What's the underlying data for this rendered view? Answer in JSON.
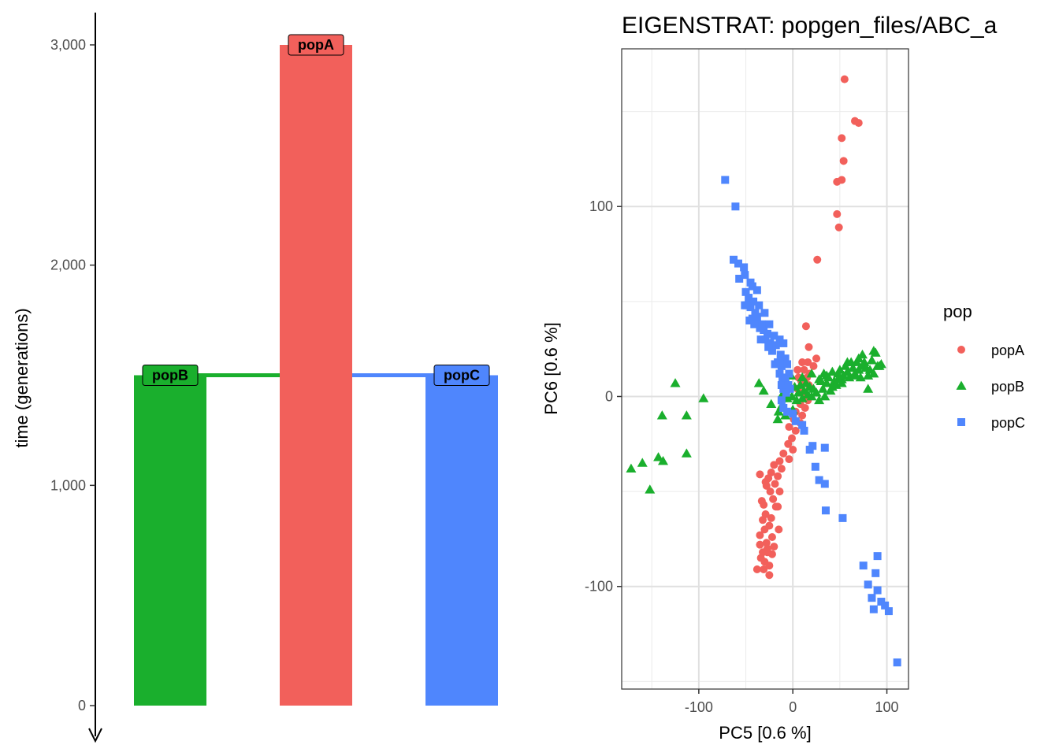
{
  "chart_data": [
    {
      "type": "bar",
      "ylabel": "time (generations)",
      "y_ticks": [
        0,
        1000,
        2000,
        3000
      ],
      "y_tick_labels": [
        "0",
        "1,000",
        "2,000",
        "3,000"
      ],
      "ylim": [
        0,
        3000
      ],
      "y_axis_reversed_arrow": true,
      "categories": [
        "popB",
        "popA",
        "popC"
      ],
      "bars": [
        {
          "label": "popB",
          "start": 0,
          "end": 1500,
          "color": "#1aaf2d"
        },
        {
          "label": "popA",
          "start": 0,
          "end": 3000,
          "color": "#f2605b"
        },
        {
          "label": "popC",
          "start": 0,
          "end": 1500,
          "color": "#4f86fd"
        }
      ],
      "splits": [
        {
          "time": 1500,
          "from": "popA",
          "to": "popB",
          "color": "#1aaf2d"
        },
        {
          "time": 1500,
          "from": "popA",
          "to": "popC",
          "color": "#4f86fd"
        }
      ]
    },
    {
      "type": "scatter",
      "title": "EIGENSTRAT: popgen_files/ABC_a",
      "xlabel": "PC5 [0.6 %]",
      "ylabel": "PC6 [0.6 %]",
      "xlim": [
        -182,
        123
      ],
      "ylim": [
        -154,
        183
      ],
      "x_ticks": [
        -100,
        0,
        100
      ],
      "x_tick_labels": [
        "-100",
        "0",
        "100"
      ],
      "y_ticks": [
        -100,
        0,
        100
      ],
      "y_tick_labels": [
        "-100",
        "0",
        "100"
      ],
      "grid": true,
      "legend": {
        "title": "pop",
        "placement": "right"
      },
      "series": [
        {
          "name": "popA",
          "marker": "circle",
          "color": "#f2605b",
          "points": [
            [
              55,
              167
            ],
            [
              66,
              145
            ],
            [
              70,
              144
            ],
            [
              52,
              136
            ],
            [
              54,
              124
            ],
            [
              47,
              113
            ],
            [
              52,
              114
            ],
            [
              47,
              96
            ],
            [
              49,
              89
            ],
            [
              26,
              72
            ],
            [
              14,
              37
            ],
            [
              17,
              26
            ],
            [
              25,
              20
            ],
            [
              10,
              18
            ],
            [
              16,
              18
            ],
            [
              22,
              16
            ],
            [
              5,
              14
            ],
            [
              12,
              14
            ],
            [
              18,
              12
            ],
            [
              6,
              10
            ],
            [
              15,
              10
            ],
            [
              9,
              8
            ],
            [
              17,
              6
            ],
            [
              5,
              4
            ],
            [
              11,
              2
            ],
            [
              16,
              -2
            ],
            [
              8,
              -4
            ],
            [
              13,
              -6
            ],
            [
              3,
              -8
            ],
            [
              10,
              -10
            ],
            [
              1,
              -12
            ],
            [
              8,
              -14
            ],
            [
              -4,
              -16
            ],
            [
              3,
              -18
            ],
            [
              -1,
              -22
            ],
            [
              -5,
              -25
            ],
            [
              0,
              -28
            ],
            [
              -10,
              -30
            ],
            [
              -4,
              -33
            ],
            [
              -14,
              -34
            ],
            [
              -20,
              -36
            ],
            [
              -12,
              -38
            ],
            [
              -23,
              -40
            ],
            [
              -16,
              -42
            ],
            [
              -26,
              -43
            ],
            [
              -19,
              -46
            ],
            [
              -28,
              -47
            ],
            [
              -14,
              -50
            ],
            [
              -21,
              -54
            ],
            [
              -16,
              -58
            ],
            [
              -29,
              -62
            ],
            [
              -23,
              -64
            ],
            [
              -18,
              -58
            ],
            [
              -31,
              -57
            ],
            [
              -25,
              -68
            ],
            [
              -15,
              -70
            ],
            [
              -30,
              -70
            ],
            [
              -35,
              -73
            ],
            [
              -22,
              -74
            ],
            [
              -28,
              -77
            ],
            [
              -35,
              -78
            ],
            [
              -27,
              -80
            ],
            [
              -32,
              -82
            ],
            [
              -22,
              -83
            ],
            [
              -34,
              -85
            ],
            [
              -30,
              -87
            ],
            [
              -25,
              -89
            ],
            [
              -31,
              -91
            ],
            [
              -25,
              -94
            ],
            [
              -38,
              -91
            ],
            [
              -27,
              -82
            ],
            [
              -20,
              -79
            ],
            [
              -32,
              -65
            ],
            [
              -33,
              -55
            ],
            [
              -29,
              -45
            ],
            [
              -24,
              -50
            ],
            [
              -35,
              -41
            ]
          ]
        },
        {
          "name": "popB",
          "marker": "triangle",
          "color": "#1aaf2d",
          "points": [
            [
              -172,
              -38
            ],
            [
              -160,
              -35
            ],
            [
              -152,
              -49
            ],
            [
              -143,
              -32
            ],
            [
              -138,
              -34
            ],
            [
              -139,
              -10
            ],
            [
              -113,
              -30
            ],
            [
              -113,
              -10
            ],
            [
              -125,
              7
            ],
            [
              -95,
              -1
            ],
            [
              -36,
              7
            ],
            [
              -31,
              3
            ],
            [
              -23,
              -4
            ],
            [
              -15,
              -8
            ],
            [
              -12,
              -5
            ],
            [
              -10,
              2
            ],
            [
              -6,
              -1
            ],
            [
              -4,
              6
            ],
            [
              -1,
              0
            ],
            [
              2,
              5
            ],
            [
              4,
              -2
            ],
            [
              6,
              2
            ],
            [
              8,
              6
            ],
            [
              10,
              -1
            ],
            [
              12,
              3
            ],
            [
              14,
              7
            ],
            [
              16,
              1
            ],
            [
              18,
              5
            ],
            [
              20,
              0
            ],
            [
              22,
              4
            ],
            [
              25,
              2
            ],
            [
              28,
              -2
            ],
            [
              30,
              8
            ],
            [
              32,
              4
            ],
            [
              33,
              12
            ],
            [
              34,
              0
            ],
            [
              36,
              7
            ],
            [
              38,
              10
            ],
            [
              40,
              3
            ],
            [
              42,
              5
            ],
            [
              44,
              8
            ],
            [
              46,
              6
            ],
            [
              48,
              12
            ],
            [
              50,
              14
            ],
            [
              52,
              9
            ],
            [
              54,
              11
            ],
            [
              56,
              16
            ],
            [
              58,
              13
            ],
            [
              60,
              10
            ],
            [
              62,
              18
            ],
            [
              64,
              15
            ],
            [
              66,
              12
            ],
            [
              68,
              18
            ],
            [
              70,
              14
            ],
            [
              72,
              10
            ],
            [
              74,
              16
            ],
            [
              76,
              18
            ],
            [
              78,
              15
            ],
            [
              80,
              11
            ],
            [
              82,
              14
            ],
            [
              84,
              19
            ],
            [
              86,
              24
            ],
            [
              88,
              23
            ],
            [
              90,
              16
            ],
            [
              92,
              16
            ],
            [
              94,
              17
            ],
            [
              86,
              12
            ],
            [
              80,
              4
            ],
            [
              74,
              22
            ],
            [
              70,
              20
            ],
            [
              66,
              11
            ],
            [
              58,
              18
            ],
            [
              52,
              7
            ],
            [
              48,
              9
            ],
            [
              42,
              13
            ],
            [
              36,
              11
            ],
            [
              28,
              9
            ],
            [
              20,
              12
            ],
            [
              10,
              10
            ],
            [
              0,
              -7
            ],
            [
              -8,
              -10
            ],
            [
              -16,
              -12
            ],
            [
              -2,
              11
            ]
          ]
        },
        {
          "name": "popC",
          "marker": "square",
          "color": "#4f86fd",
          "points": [
            [
              -72,
              114
            ],
            [
              -61,
              100
            ],
            [
              -63,
              72
            ],
            [
              -58,
              70
            ],
            [
              -52,
              68
            ],
            [
              -57,
              62
            ],
            [
              -51,
              64
            ],
            [
              -45,
              60
            ],
            [
              -50,
              55
            ],
            [
              -43,
              58
            ],
            [
              -47,
              52
            ],
            [
              -42,
              50
            ],
            [
              -49,
              48
            ],
            [
              -38,
              56
            ],
            [
              -45,
              47
            ],
            [
              -40,
              44
            ],
            [
              -51,
              48
            ],
            [
              -36,
              48
            ],
            [
              -43,
              41
            ],
            [
              -46,
              40
            ],
            [
              -38,
              42
            ],
            [
              -30,
              44
            ],
            [
              -33,
              38
            ],
            [
              -35,
              36
            ],
            [
              -41,
              38
            ],
            [
              -31,
              35
            ],
            [
              -25,
              38
            ],
            [
              -27,
              33
            ],
            [
              -29,
              30
            ],
            [
              -20,
              32
            ],
            [
              -34,
              30
            ],
            [
              -24,
              28
            ],
            [
              -22,
              24
            ],
            [
              -18,
              27
            ],
            [
              -14,
              30
            ],
            [
              -26,
              26
            ],
            [
              -13,
              22
            ],
            [
              -10,
              28
            ],
            [
              -8,
              20
            ],
            [
              -16,
              18
            ],
            [
              -12,
              16
            ],
            [
              -19,
              17
            ],
            [
              -6,
              17
            ],
            [
              -14,
              12
            ],
            [
              -11,
              10
            ],
            [
              -4,
              12
            ],
            [
              -8,
              9
            ],
            [
              -12,
              6
            ],
            [
              -5,
              6
            ],
            [
              -10,
              4
            ],
            [
              -7,
              2
            ],
            [
              -3,
              4
            ],
            [
              -12,
              -2
            ],
            [
              -10,
              -6
            ],
            [
              -6,
              -8
            ],
            [
              0,
              -9
            ],
            [
              3,
              -13
            ],
            [
              10,
              -15
            ],
            [
              12,
              -18
            ],
            [
              18,
              -28
            ],
            [
              21,
              -26
            ],
            [
              34,
              -27
            ],
            [
              24,
              -37
            ],
            [
              28,
              -44
            ],
            [
              34,
              -46
            ],
            [
              35,
              -60
            ],
            [
              53,
              -64
            ],
            [
              75,
              -89
            ],
            [
              90,
              -84
            ],
            [
              88,
              -93
            ],
            [
              80,
              -99
            ],
            [
              90,
              -102
            ],
            [
              84,
              -106
            ],
            [
              94,
              -108
            ],
            [
              98,
              -110
            ],
            [
              86,
              -112
            ],
            [
              102,
              -113
            ],
            [
              111,
              -140
            ]
          ]
        }
      ]
    }
  ]
}
